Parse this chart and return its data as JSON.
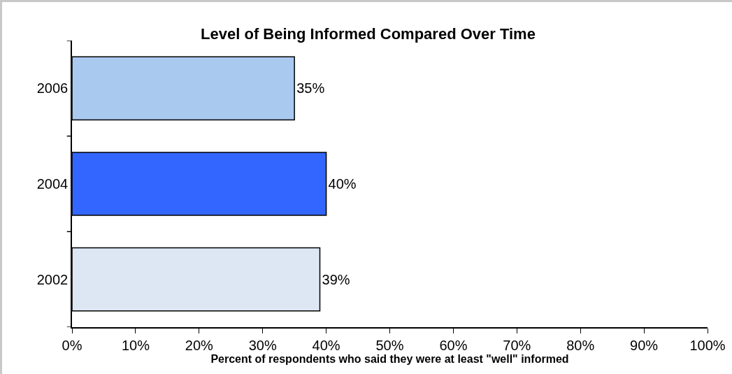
{
  "chart_data": {
    "type": "bar",
    "orientation": "horizontal",
    "title": "Level of Being Informed Compared Over Time",
    "xlabel": "Percent of respondents who said they were at least \"well\" informed",
    "categories": [
      "2006",
      "2004",
      "2002"
    ],
    "values": [
      35,
      40,
      39
    ],
    "colors": [
      "#a9c9ef",
      "#3366ff",
      "#dde7f4"
    ],
    "value_labels": [
      "35%",
      "40%",
      "39%"
    ],
    "xlim": [
      0,
      100
    ],
    "xticks": [
      {
        "value": 0,
        "label": "0%"
      },
      {
        "value": 10,
        "label": "10%"
      },
      {
        "value": 20,
        "label": "20%"
      },
      {
        "value": 30,
        "label": "30%"
      },
      {
        "value": 40,
        "label": "40%"
      },
      {
        "value": 50,
        "label": "50%"
      },
      {
        "value": 60,
        "label": "60%"
      },
      {
        "value": 70,
        "label": "70%"
      },
      {
        "value": 80,
        "label": "80%"
      },
      {
        "value": 90,
        "label": "90%"
      },
      {
        "value": 100,
        "label": "100%"
      }
    ],
    "grid": false
  }
}
